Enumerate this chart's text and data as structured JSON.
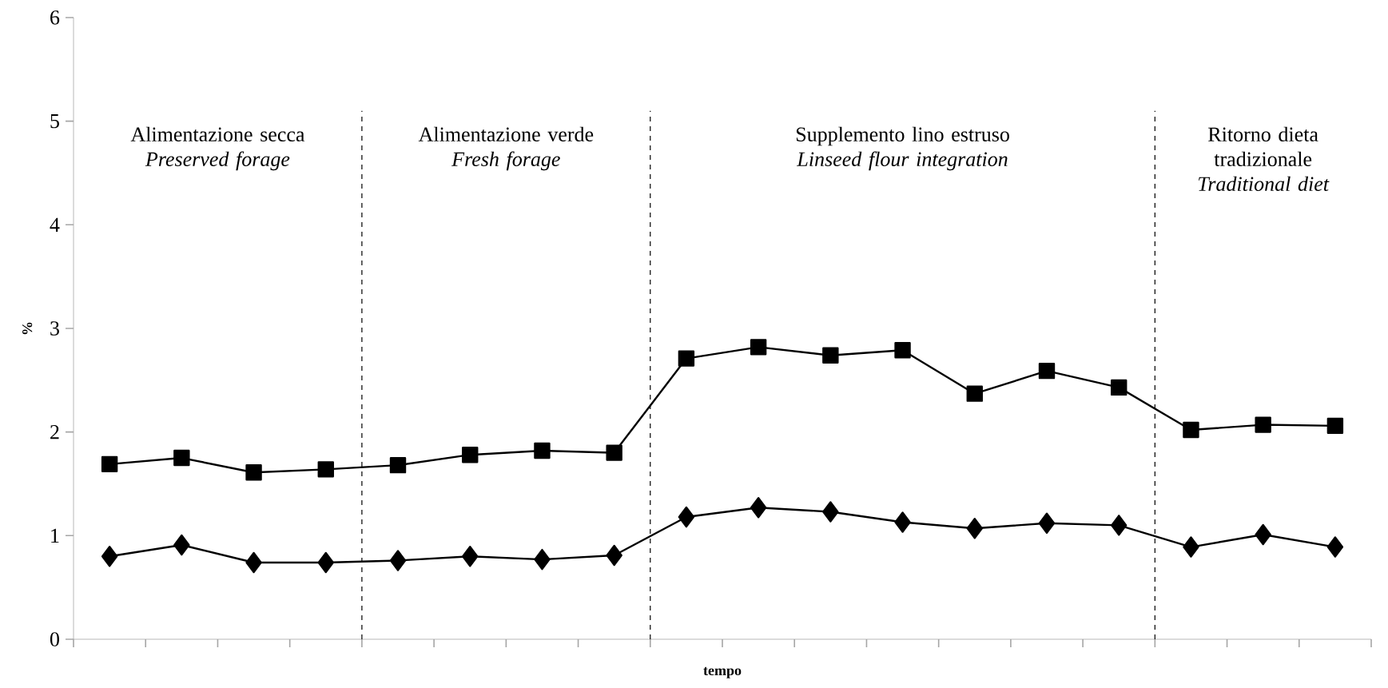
{
  "chart_data": {
    "type": "line",
    "xlabel": "tempo",
    "ylabel": "%",
    "categories": [
      null,
      null,
      null,
      null,
      null,
      null,
      null,
      null,
      null,
      null,
      null,
      null,
      null,
      null,
      null,
      null,
      null,
      null
    ],
    "series": [
      {
        "color": "#000000",
        "marker": "square",
        "values": [
          1.69,
          1.75,
          1.61,
          1.64,
          1.68,
          1.78,
          1.82,
          1.8,
          2.71,
          2.82,
          2.74,
          2.79,
          2.37,
          2.59,
          2.43,
          2.02,
          2.07,
          2.06
        ]
      },
      {
        "color": "#000000",
        "marker": "diamond",
        "values": [
          0.8,
          0.91,
          0.74,
          0.74,
          0.76,
          0.8,
          0.77,
          0.81,
          1.18,
          1.27,
          1.23,
          1.13,
          1.07,
          1.12,
          1.1,
          0.89,
          1.01,
          0.89
        ]
      }
    ],
    "ylim": [
      0,
      6
    ],
    "yticks": [
      0,
      1,
      2,
      3,
      4,
      5,
      6
    ],
    "annotations": [
      "Alimentazione secca",
      "Preserved forage",
      "Alimentazione verde",
      "Fresh forage",
      "Supplemento lino estruso",
      "Linseed flour integration",
      "Ritorno dieta tradizionale",
      "Traditional diet"
    ],
    "grid": false,
    "line_style": "solid"
  }
}
